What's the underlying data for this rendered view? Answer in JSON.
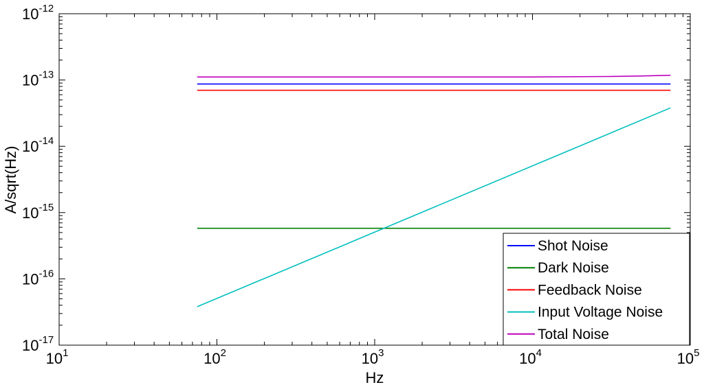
{
  "chart_data": {
    "type": "line",
    "xscale": "log",
    "yscale": "log",
    "xlabel": "Hz",
    "ylabel": "A/sqrt(Hz)",
    "xlim": [
      10,
      100000
    ],
    "ylim": [
      1e-17,
      1e-12
    ],
    "x_ticks": [
      {
        "value": 10,
        "base": "10",
        "exp": "1"
      },
      {
        "value": 100,
        "base": "10",
        "exp": "2"
      },
      {
        "value": 1000,
        "base": "10",
        "exp": "3"
      },
      {
        "value": 10000,
        "base": "10",
        "exp": "4"
      },
      {
        "value": 100000,
        "base": "10",
        "exp": "5"
      }
    ],
    "y_ticks": [
      {
        "value": 1e-17,
        "base": "10",
        "exp": "-17"
      },
      {
        "value": 1e-16,
        "base": "10",
        "exp": "-16"
      },
      {
        "value": 1e-15,
        "base": "10",
        "exp": "-15"
      },
      {
        "value": 1e-14,
        "base": "10",
        "exp": "-14"
      },
      {
        "value": 1e-13,
        "base": "10",
        "exp": "-13"
      },
      {
        "value": 1e-12,
        "base": "10",
        "exp": "-12"
      }
    ],
    "grid": false,
    "legend_position": "bottom-right",
    "series": [
      {
        "name": "Shot Noise",
        "color": "#0000ff",
        "x": [
          75,
          75000
        ],
        "values": [
          8.7e-14,
          8.7e-14
        ]
      },
      {
        "name": "Dark Noise",
        "color": "#008000",
        "x": [
          75,
          75000
        ],
        "values": [
          5.8e-16,
          5.8e-16
        ]
      },
      {
        "name": "Feedback Noise",
        "color": "#ff0000",
        "x": [
          75,
          75000
        ],
        "values": [
          7e-14,
          7e-14
        ]
      },
      {
        "name": "Input Voltage Noise",
        "color": "#00bfbf",
        "x": [
          75,
          75000
        ],
        "values": [
          3.8e-17,
          3.8e-14
        ]
      },
      {
        "name": "Total Noise",
        "color": "#bf00bf",
        "x": [
          75,
          10000,
          30000,
          50000,
          75000
        ],
        "values": [
          1.11e-13,
          1.11e-13,
          1.13e-13,
          1.15e-13,
          1.18e-13
        ]
      }
    ]
  }
}
